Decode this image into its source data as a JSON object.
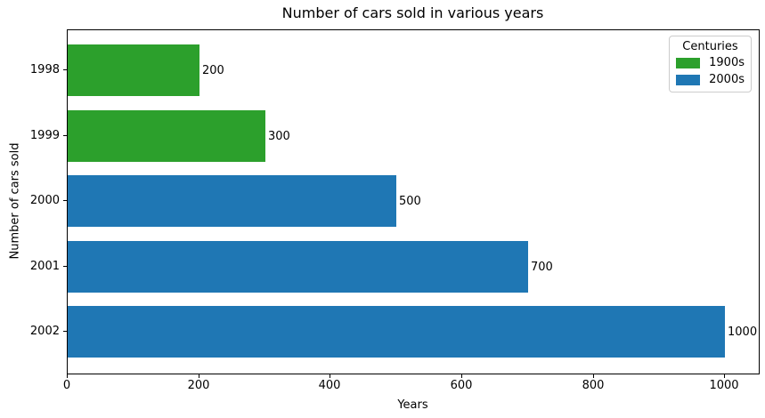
{
  "chart_data": {
    "type": "bar",
    "orientation": "horizontal",
    "title": "Number of cars sold in various years",
    "xlabel": "Years",
    "ylabel": "Number of cars sold",
    "categories": [
      "1998",
      "1999",
      "2000",
      "2001",
      "2002"
    ],
    "values": [
      200,
      300,
      500,
      700,
      1000
    ],
    "bar_value_labels": [
      "200",
      "300",
      "500",
      "700",
      "1000"
    ],
    "bar_colors": [
      "#2ca02c",
      "#2ca02c",
      "#1f77b4",
      "#1f77b4",
      "#1f77b4"
    ],
    "x_ticks": [
      0,
      200,
      400,
      600,
      800,
      1000
    ],
    "x_tick_labels": [
      "0",
      "200",
      "400",
      "600",
      "800",
      "1000"
    ],
    "xlim": [
      0,
      1051
    ],
    "grid": false,
    "legend": {
      "title": "Centuries",
      "position": "upper right",
      "entries": [
        {
          "label": "1900s",
          "color": "#2ca02c"
        },
        {
          "label": "2000s",
          "color": "#1f77b4"
        }
      ]
    },
    "colors": {
      "green_1900s": "#2ca02c",
      "blue_2000s": "#1f77b4",
      "axis": "#000000",
      "background": "#ffffff"
    }
  }
}
